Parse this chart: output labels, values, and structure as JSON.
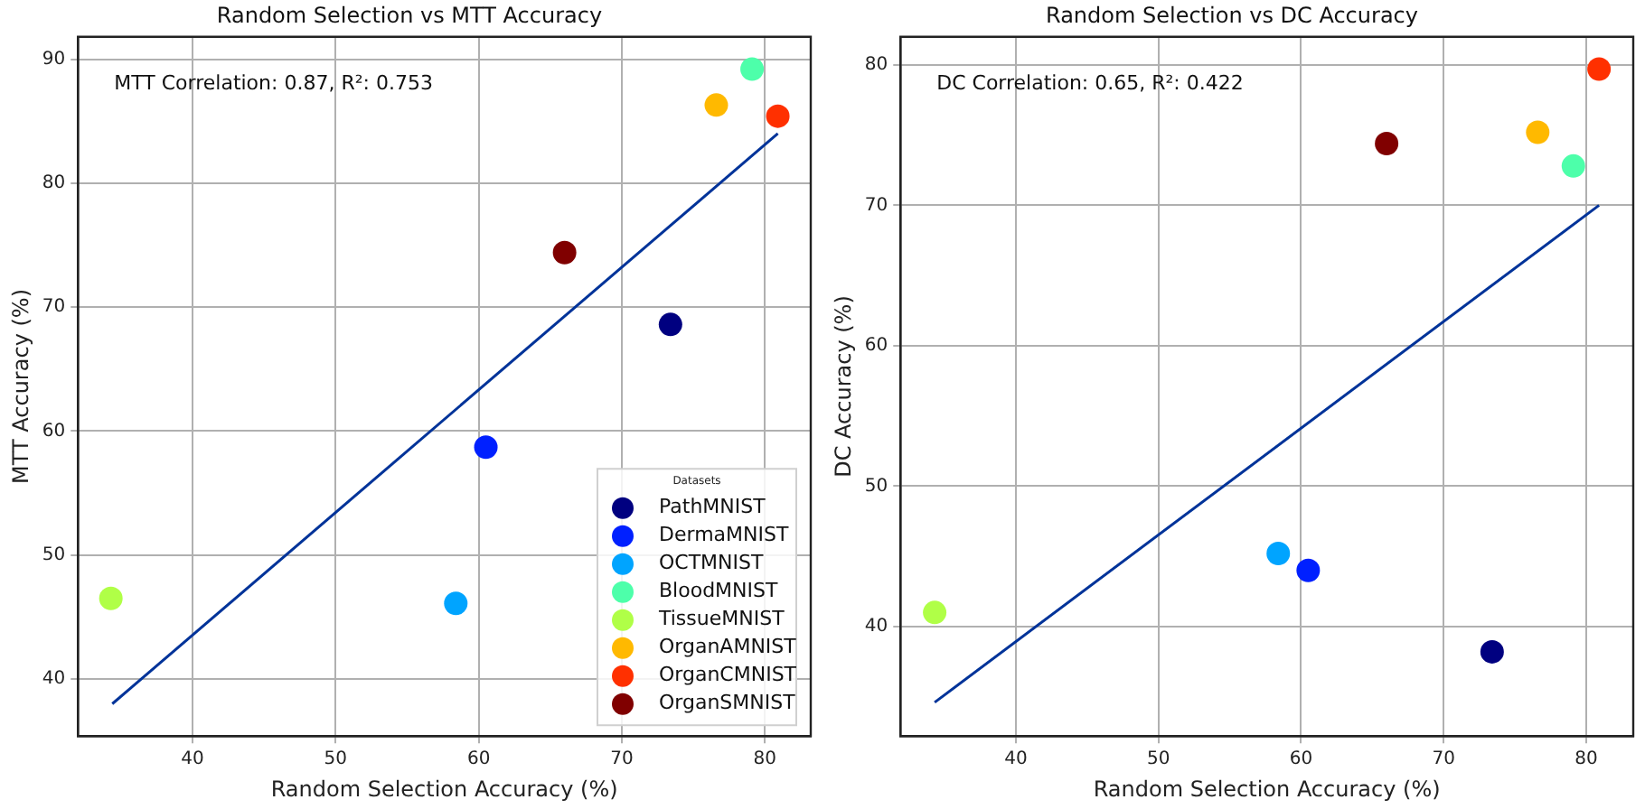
{
  "chart_data": [
    {
      "type": "scatter",
      "title": "Random Selection vs MTT Accuracy",
      "xlabel": "Random Selection Accuracy (%)",
      "ylabel": "MTT Accuracy (%)",
      "legend_title": "Datasets",
      "legend": "bottom right",
      "grid": true,
      "marker": "circle",
      "xlim": [
        32,
        83.2
      ],
      "xticks": [
        40,
        50,
        60,
        70,
        80
      ],
      "ylim": [
        35.4,
        91.8
      ],
      "yticks": [
        40,
        50,
        60,
        70,
        80,
        90
      ],
      "annotations": [
        "MTT Correlation: 0.87, R²: 0.753"
      ],
      "series": [
        {
          "name": "PathMNIST",
          "color": "#000080",
          "x": [
            73.4
          ],
          "values": [
            68.6
          ]
        },
        {
          "name": "DermaMNIST",
          "color": "#0020ff",
          "x": [
            60.5
          ],
          "values": [
            58.7
          ]
        },
        {
          "name": "OCTMNIST",
          "color": "#00a4ff",
          "x": [
            58.4
          ],
          "values": [
            46.1
          ]
        },
        {
          "name": "BloodMNIST",
          "color": "#4dffaa",
          "x": [
            79.1
          ],
          "values": [
            89.2
          ]
        },
        {
          "name": "TissueMNIST",
          "color": "#b0ff47",
          "x": [
            34.3
          ],
          "values": [
            46.5
          ]
        },
        {
          "name": "OrganAMNIST",
          "color": "#ffb900",
          "x": [
            76.6
          ],
          "values": [
            86.3
          ]
        },
        {
          "name": "OrganCMNIST",
          "color": "#ff3000",
          "x": [
            80.9
          ],
          "values": [
            85.4
          ]
        },
        {
          "name": "OrganSMNIST",
          "color": "#800000",
          "x": [
            66.0
          ],
          "values": [
            74.4
          ]
        },
        {
          "type": "line",
          "marker": "none",
          "color": "#003399",
          "x": [
            34.4,
            80.9
          ],
          "values": [
            38.0,
            84.0
          ]
        }
      ]
    },
    {
      "type": "scatter",
      "title": "Random Selection vs DC Accuracy",
      "xlabel": "Random Selection Accuracy (%)",
      "ylabel": "DC Accuracy (%)",
      "grid": true,
      "marker": "circle",
      "xlim": [
        31.9,
        83.3
      ],
      "xticks": [
        40,
        50,
        60,
        70,
        80
      ],
      "ylim": [
        32.2,
        82.0
      ],
      "yticks": [
        40,
        50,
        60,
        70,
        80
      ],
      "annotations": [
        "DC Correlation: 0.65, R²: 0.422"
      ],
      "series": [
        {
          "color": "#000080",
          "x": [
            73.4
          ],
          "values": [
            38.2
          ]
        },
        {
          "color": "#0020ff",
          "x": [
            60.5
          ],
          "values": [
            44.0
          ]
        },
        {
          "color": "#00a4ff",
          "x": [
            58.4
          ],
          "values": [
            45.2
          ]
        },
        {
          "color": "#4dffaa",
          "x": [
            79.1
          ],
          "values": [
            72.8
          ]
        },
        {
          "color": "#b0ff47",
          "x": [
            34.3
          ],
          "values": [
            41.0
          ]
        },
        {
          "color": "#ffb900",
          "x": [
            76.6
          ],
          "values": [
            75.2
          ]
        },
        {
          "color": "#ff3000",
          "x": [
            80.9
          ],
          "values": [
            79.7
          ]
        },
        {
          "color": "#800000",
          "x": [
            66.0
          ],
          "values": [
            74.4
          ]
        },
        {
          "type": "line",
          "marker": "none",
          "color": "#003399",
          "x": [
            34.3,
            80.9
          ],
          "values": [
            34.6,
            70.0
          ]
        }
      ]
    }
  ]
}
